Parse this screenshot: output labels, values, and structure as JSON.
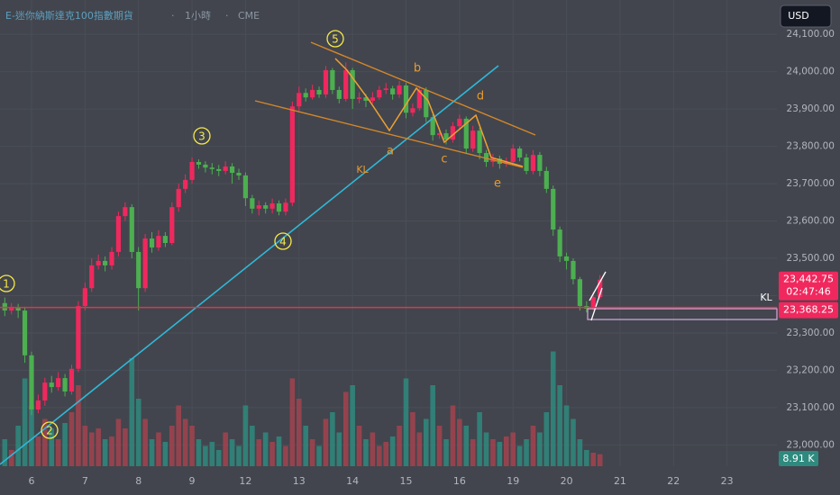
{
  "chart_data": {
    "type": "candlestick",
    "title": "E-迷你納斯達克100指數期貨",
    "interval": "1小時",
    "exchange": "CME",
    "currency": "USD",
    "categories": [
      null,
      null,
      null,
      null,
      "6",
      null,
      null,
      null,
      null,
      null,
      null,
      null,
      "7",
      null,
      null,
      null,
      null,
      null,
      null,
      null,
      "8",
      null,
      null,
      null,
      null,
      null,
      null,
      null,
      "9",
      null,
      null,
      null,
      null,
      null,
      null,
      null,
      "12",
      null,
      null,
      null,
      null,
      null,
      null,
      null,
      "13",
      null,
      null,
      null,
      null,
      null,
      null,
      null,
      "14",
      null,
      null,
      null,
      null,
      null,
      null,
      null,
      "15",
      null,
      null,
      null,
      null,
      null,
      null,
      null,
      "16",
      null,
      null,
      null,
      null,
      null,
      null,
      null,
      "19",
      null,
      null,
      null,
      null,
      null,
      null,
      null,
      "20",
      null,
      null,
      null,
      null,
      null,
      null,
      null,
      "21",
      null,
      null,
      null,
      null,
      null,
      null,
      null,
      "22",
      null,
      null,
      null,
      null,
      null,
      null,
      null,
      "23",
      null,
      null,
      null,
      null,
      null
    ],
    "open": [
      23380,
      23360,
      23367,
      23360,
      23240,
      23095,
      23119,
      23167,
      23155,
      23179,
      23143,
      23204,
      23372,
      23420,
      23481,
      23493,
      23481,
      23517,
      23613,
      23637,
      23517,
      23420,
      23553,
      23529,
      23560,
      23541,
      23637,
      23686,
      23710,
      23758,
      23751,
      23743,
      23739,
      23734,
      23746,
      23729,
      23722,
      23661,
      23633,
      23642,
      23633,
      23647,
      23625,
      23649,
      23907,
      23943,
      23931,
      23951,
      23939,
      24004,
      23951,
      23927,
      24004,
      23927,
      23931,
      23922,
      23931,
      23951,
      23955,
      23939,
      23963,
      23890,
      23902,
      23951,
      23878,
      23830,
      23835,
      23818,
      23854,
      23874,
      23794,
      23842,
      23782,
      23758,
      23767,
      23753,
      23758,
      23794,
      23770,
      23734,
      23777,
      23734,
      23686,
      23577,
      23505,
      23493,
      23444,
      23372,
      23365,
      23396,
      null,
      null,
      null,
      null,
      null,
      null,
      null,
      null,
      null,
      null,
      null,
      null,
      null,
      null,
      null,
      null,
      null,
      null,
      null,
      null,
      null,
      null,
      null,
      null
    ],
    "high": [
      23395,
      23380,
      23378,
      23370,
      23250,
      23135,
      23180,
      23185,
      23195,
      23190,
      23215,
      23385,
      23435,
      23500,
      23510,
      23505,
      23530,
      23625,
      23650,
      23645,
      23530,
      23565,
      23570,
      23575,
      23570,
      23650,
      23700,
      23725,
      23770,
      23765,
      23760,
      23755,
      23750,
      23760,
      23755,
      23740,
      23730,
      23670,
      23655,
      23650,
      23660,
      23655,
      23660,
      23920,
      23960,
      23955,
      23965,
      23960,
      24015,
      24010,
      23960,
      24025,
      24010,
      23945,
      23940,
      23945,
      23962,
      23970,
      23962,
      23975,
      23970,
      23915,
      23962,
      23958,
      23885,
      23850,
      23845,
      23865,
      23885,
      23880,
      23855,
      23850,
      23790,
      23780,
      23775,
      23770,
      23805,
      23800,
      23780,
      23790,
      23785,
      23745,
      23695,
      23585,
      23515,
      23500,
      23450,
      23385,
      23410,
      23455,
      null,
      null,
      null,
      null,
      null,
      null,
      null,
      null,
      null,
      null,
      null,
      null,
      null,
      null,
      null,
      null,
      null,
      null,
      null,
      null,
      null,
      null,
      null,
      null
    ],
    "low": [
      23345,
      23350,
      23340,
      23220,
      23080,
      23085,
      23105,
      23140,
      23145,
      23130,
      23135,
      23195,
      23360,
      23410,
      23470,
      23465,
      23470,
      23505,
      23600,
      23500,
      23360,
      23410,
      23515,
      23520,
      23530,
      23535,
      23625,
      23675,
      23700,
      23740,
      23730,
      23725,
      23720,
      23725,
      23700,
      23710,
      23640,
      23620,
      23615,
      23620,
      23620,
      23615,
      23615,
      23640,
      23895,
      23920,
      23925,
      23930,
      23930,
      23940,
      23915,
      23920,
      23900,
      23915,
      23905,
      23915,
      23925,
      23940,
      23925,
      23930,
      23875,
      23880,
      23895,
      23865,
      23815,
      23820,
      23805,
      23810,
      23845,
      23780,
      23785,
      23765,
      23745,
      23745,
      23740,
      23745,
      23750,
      23760,
      23725,
      23725,
      23720,
      23675,
      23560,
      23490,
      23470,
      23430,
      23360,
      23355,
      23360,
      23390,
      null,
      null,
      null,
      null,
      null,
      null,
      null,
      null,
      null,
      null,
      null,
      null,
      null,
      null,
      null,
      null,
      null,
      null,
      null,
      null,
      null,
      null,
      null,
      null
    ],
    "close": [
      23360,
      23367,
      23360,
      23240,
      23095,
      23119,
      23167,
      23155,
      23179,
      23143,
      23204,
      23372,
      23420,
      23481,
      23493,
      23481,
      23517,
      23613,
      23637,
      23517,
      23420,
      23553,
      23529,
      23560,
      23541,
      23637,
      23686,
      23710,
      23758,
      23751,
      23743,
      23739,
      23734,
      23746,
      23729,
      23722,
      23661,
      23633,
      23642,
      23633,
      23647,
      23625,
      23649,
      23907,
      23943,
      23931,
      23951,
      23939,
      24004,
      23951,
      23927,
      24004,
      23927,
      23931,
      23922,
      23931,
      23951,
      23955,
      23939,
      23963,
      23890,
      23902,
      23951,
      23878,
      23830,
      23835,
      23818,
      23854,
      23874,
      23794,
      23842,
      23782,
      23758,
      23767,
      23753,
      23758,
      23794,
      23770,
      23734,
      23777,
      23734,
      23686,
      23577,
      23505,
      23493,
      23444,
      23372,
      23365,
      23396,
      23442.75,
      null,
      null,
      null,
      null,
      null,
      null,
      null,
      null,
      null,
      null,
      null,
      null,
      null,
      null,
      null,
      null,
      null,
      null,
      null,
      null,
      null,
      null,
      null,
      null
    ],
    "volume": [
      20,
      12,
      30,
      65,
      45,
      22,
      35,
      28,
      20,
      32,
      40,
      60,
      30,
      25,
      28,
      20,
      22,
      35,
      28,
      80,
      50,
      35,
      20,
      25,
      18,
      30,
      45,
      35,
      30,
      20,
      15,
      18,
      12,
      25,
      20,
      15,
      45,
      30,
      20,
      25,
      18,
      22,
      15,
      65,
      50,
      30,
      20,
      15,
      35,
      40,
      25,
      55,
      60,
      30,
      20,
      25,
      15,
      18,
      22,
      30,
      65,
      40,
      25,
      35,
      60,
      30,
      20,
      45,
      35,
      30,
      20,
      40,
      25,
      20,
      18,
      22,
      25,
      15,
      20,
      30,
      25,
      40,
      85,
      60,
      45,
      35,
      20,
      12,
      10,
      8.91,
      null,
      null,
      null,
      null,
      null,
      null,
      null,
      null,
      null,
      null,
      null,
      null,
      null,
      null,
      null,
      null,
      null,
      null,
      null,
      null,
      null,
      null,
      null,
      null
    ],
    "volume_label": {
      "value": 8.91,
      "label": "8.91 K"
    },
    "volume_ylim": [
      0,
      200
    ],
    "up_color": "#f0285e",
    "down_color": "#4caf50",
    "volume_up_color": "#a2434f",
    "volume_down_color": "#2e8a7e",
    "ylim": [
      22943,
      24192
    ],
    "yticks": [
      {
        "value": 24100,
        "label": "24,100.00"
      },
      {
        "value": 24000,
        "label": "24,000.00"
      },
      {
        "value": 23900,
        "label": "23,900.00"
      },
      {
        "value": 23800,
        "label": "23,800.00"
      },
      {
        "value": 23700,
        "label": "23,700.00"
      },
      {
        "value": 23600,
        "label": "23,600.00"
      },
      {
        "value": 23500,
        "label": "23,500.00"
      },
      {
        "value": 23400,
        "label": "23,400.00"
      },
      {
        "value": 23300,
        "label": "23,300.00"
      },
      {
        "value": 23200,
        "label": "23,200.00"
      },
      {
        "value": 23100,
        "label": "23,100.00"
      },
      {
        "value": 23000,
        "label": "23,000.00"
      }
    ],
    "last_price": {
      "value": 23442.75,
      "label": "23,442.75"
    },
    "countdown": "02:47:46",
    "level_line": {
      "value": 23368.25,
      "label": "23,368.25"
    },
    "grid": true,
    "waves": [
      "1",
      "2",
      "3",
      "4",
      "5"
    ],
    "subwaves": [
      "a",
      "b",
      "c",
      "d",
      "e"
    ],
    "line_labels": [
      "KL",
      "KL"
    ]
  }
}
